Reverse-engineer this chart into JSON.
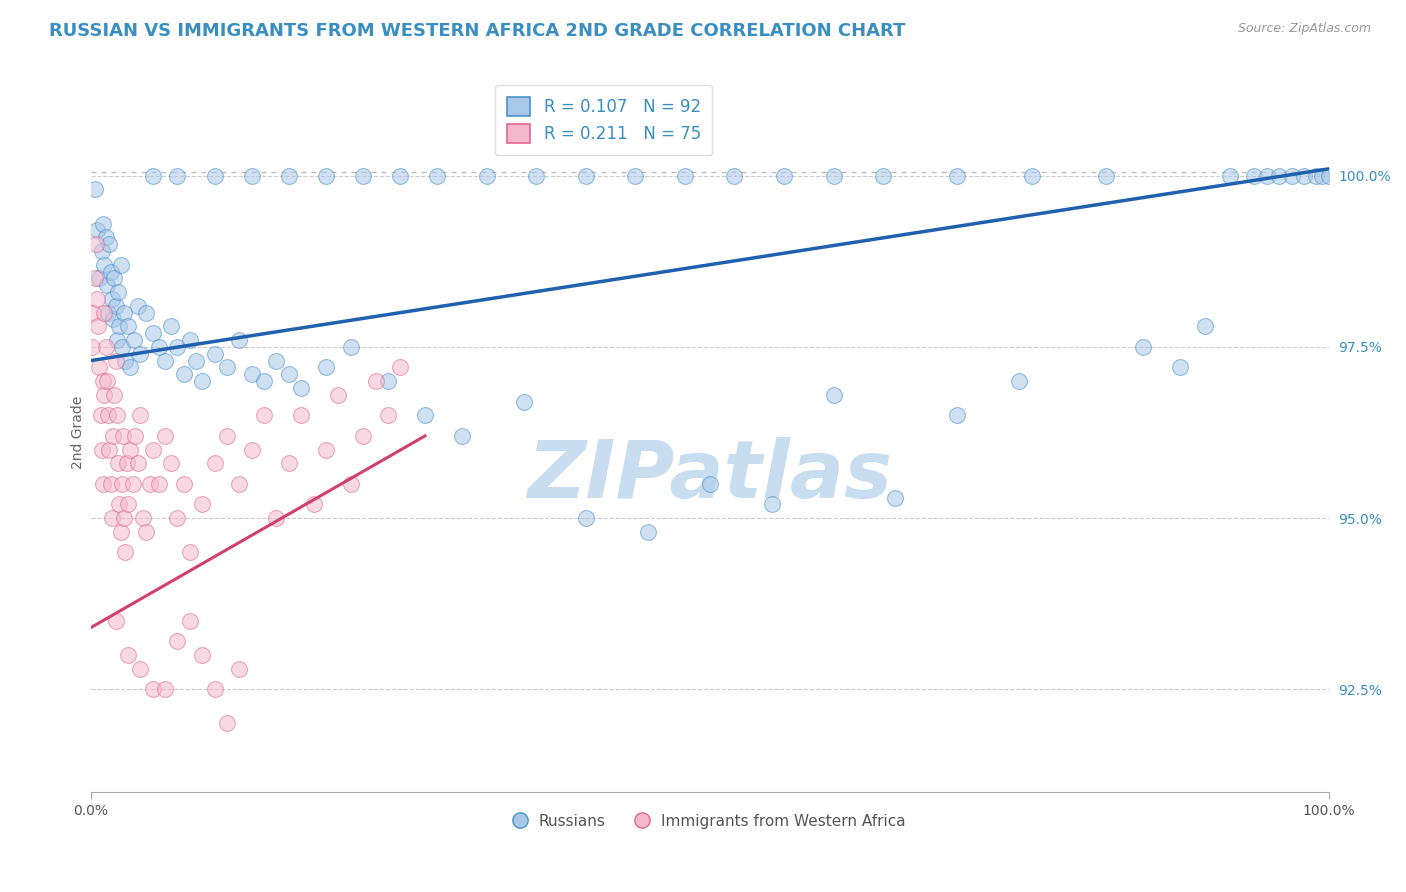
{
  "title": "RUSSIAN VS IMMIGRANTS FROM WESTERN AFRICA 2ND GRADE CORRELATION CHART",
  "source": "Source: ZipAtlas.com",
  "ylabel": "2nd Grade",
  "xlim": [
    0,
    100
  ],
  "ylim": [
    91.0,
    101.5
  ],
  "yticks": [
    92.5,
    95.0,
    97.5,
    100.0
  ],
  "ytick_labels": [
    "92.5%",
    "95.0%",
    "97.5%",
    "100.0%"
  ],
  "xtick_labels": [
    "0.0%",
    "100.0%"
  ],
  "legend_r1": "R = 0.107   N = 92",
  "legend_r2": "R = 0.211   N = 75",
  "legend_label1": "Russians",
  "legend_label2": "Immigrants from Western Africa",
  "blue_fill": "#a8c8e8",
  "blue_edge": "#4a90c8",
  "pink_fill": "#f4b8cc",
  "pink_edge": "#e06890",
  "line_blue_color": "#2060b0",
  "line_pink_color": "#d04070",
  "dash_color": "#bbbbbb",
  "watermark_color": "#c8ddf0",
  "blue_trend_x0": 0,
  "blue_trend_y0": 97.3,
  "blue_trend_x1": 100,
  "blue_trend_y1": 100.1,
  "pink_trend_x0": 0,
  "pink_trend_y0": 93.4,
  "pink_trend_x1": 27,
  "pink_trend_y1": 96.2,
  "dash_y": 100.05,
  "russians_x": [
    0.3,
    0.5,
    0.7,
    0.9,
    1.0,
    1.1,
    1.2,
    1.3,
    1.4,
    1.5,
    1.6,
    1.7,
    1.8,
    1.9,
    2.0,
    2.1,
    2.2,
    2.3,
    2.4,
    2.5,
    2.7,
    2.8,
    3.0,
    3.2,
    3.5,
    3.8,
    4.0,
    4.5,
    5.0,
    5.5,
    6.0,
    6.5,
    7.0,
    7.5,
    8.0,
    8.5,
    9.0,
    10.0,
    11.0,
    12.0,
    13.0,
    14.0,
    15.0,
    16.0,
    17.0,
    19.0,
    21.0,
    24.0,
    27.0,
    30.0,
    35.0,
    40.0,
    45.0,
    50.0,
    55.0,
    60.0,
    65.0,
    70.0,
    75.0,
    85.0,
    88.0,
    90.0,
    92.0,
    94.0,
    95.0,
    96.0,
    97.0,
    98.0,
    99.0,
    99.5,
    100.0,
    5.0,
    7.0,
    10.0,
    13.0,
    16.0,
    19.0,
    22.0,
    25.0,
    28.0,
    32.0,
    36.0,
    40.0,
    44.0,
    48.0,
    52.0,
    56.0,
    60.0,
    64.0,
    70.0,
    76.0,
    82.0
  ],
  "russians_y": [
    99.8,
    99.2,
    98.5,
    98.9,
    99.3,
    98.7,
    99.1,
    98.4,
    98.0,
    99.0,
    98.6,
    98.2,
    97.9,
    98.5,
    98.1,
    97.6,
    98.3,
    97.8,
    98.7,
    97.5,
    98.0,
    97.3,
    97.8,
    97.2,
    97.6,
    98.1,
    97.4,
    98.0,
    97.7,
    97.5,
    97.3,
    97.8,
    97.5,
    97.1,
    97.6,
    97.3,
    97.0,
    97.4,
    97.2,
    97.6,
    97.1,
    97.0,
    97.3,
    97.1,
    96.9,
    97.2,
    97.5,
    97.0,
    96.5,
    96.2,
    96.7,
    95.0,
    94.8,
    95.5,
    95.2,
    96.8,
    95.3,
    96.5,
    97.0,
    97.5,
    97.2,
    97.8,
    100.0,
    100.0,
    100.0,
    100.0,
    100.0,
    100.0,
    100.0,
    100.0,
    100.0,
    100.0,
    100.0,
    100.0,
    100.0,
    100.0,
    100.0,
    100.0,
    100.0,
    100.0,
    100.0,
    100.0,
    100.0,
    100.0,
    100.0,
    100.0,
    100.0,
    100.0,
    100.0,
    100.0,
    100.0,
    100.0
  ],
  "immigrants_x": [
    0.1,
    0.2,
    0.3,
    0.4,
    0.5,
    0.6,
    0.7,
    0.8,
    0.9,
    1.0,
    1.0,
    1.1,
    1.1,
    1.2,
    1.3,
    1.4,
    1.5,
    1.6,
    1.7,
    1.8,
    1.9,
    2.0,
    2.1,
    2.2,
    2.3,
    2.4,
    2.5,
    2.6,
    2.7,
    2.8,
    2.9,
    3.0,
    3.2,
    3.4,
    3.6,
    3.8,
    4.0,
    4.2,
    4.5,
    4.8,
    5.0,
    5.5,
    6.0,
    6.5,
    7.0,
    7.5,
    8.0,
    9.0,
    10.0,
    11.0,
    12.0,
    13.0,
    14.0,
    15.0,
    16.0,
    17.0,
    18.0,
    19.0,
    20.0,
    21.0,
    22.0,
    23.0,
    24.0,
    25.0,
    2.0,
    3.0,
    4.0,
    5.0,
    6.0,
    7.0,
    8.0,
    9.0,
    10.0,
    11.0,
    12.0
  ],
  "immigrants_y": [
    97.5,
    98.0,
    98.5,
    99.0,
    98.2,
    97.8,
    97.2,
    96.5,
    96.0,
    95.5,
    97.0,
    96.8,
    98.0,
    97.5,
    97.0,
    96.5,
    96.0,
    95.5,
    95.0,
    96.2,
    96.8,
    97.3,
    96.5,
    95.8,
    95.2,
    94.8,
    95.5,
    96.2,
    95.0,
    94.5,
    95.8,
    95.2,
    96.0,
    95.5,
    96.2,
    95.8,
    96.5,
    95.0,
    94.8,
    95.5,
    96.0,
    95.5,
    96.2,
    95.8,
    95.0,
    95.5,
    94.5,
    95.2,
    95.8,
    96.2,
    95.5,
    96.0,
    96.5,
    95.0,
    95.8,
    96.5,
    95.2,
    96.0,
    96.8,
    95.5,
    96.2,
    97.0,
    96.5,
    97.2,
    93.5,
    93.0,
    92.8,
    92.5,
    92.5,
    93.2,
    93.5,
    93.0,
    92.5,
    92.0,
    92.8
  ]
}
